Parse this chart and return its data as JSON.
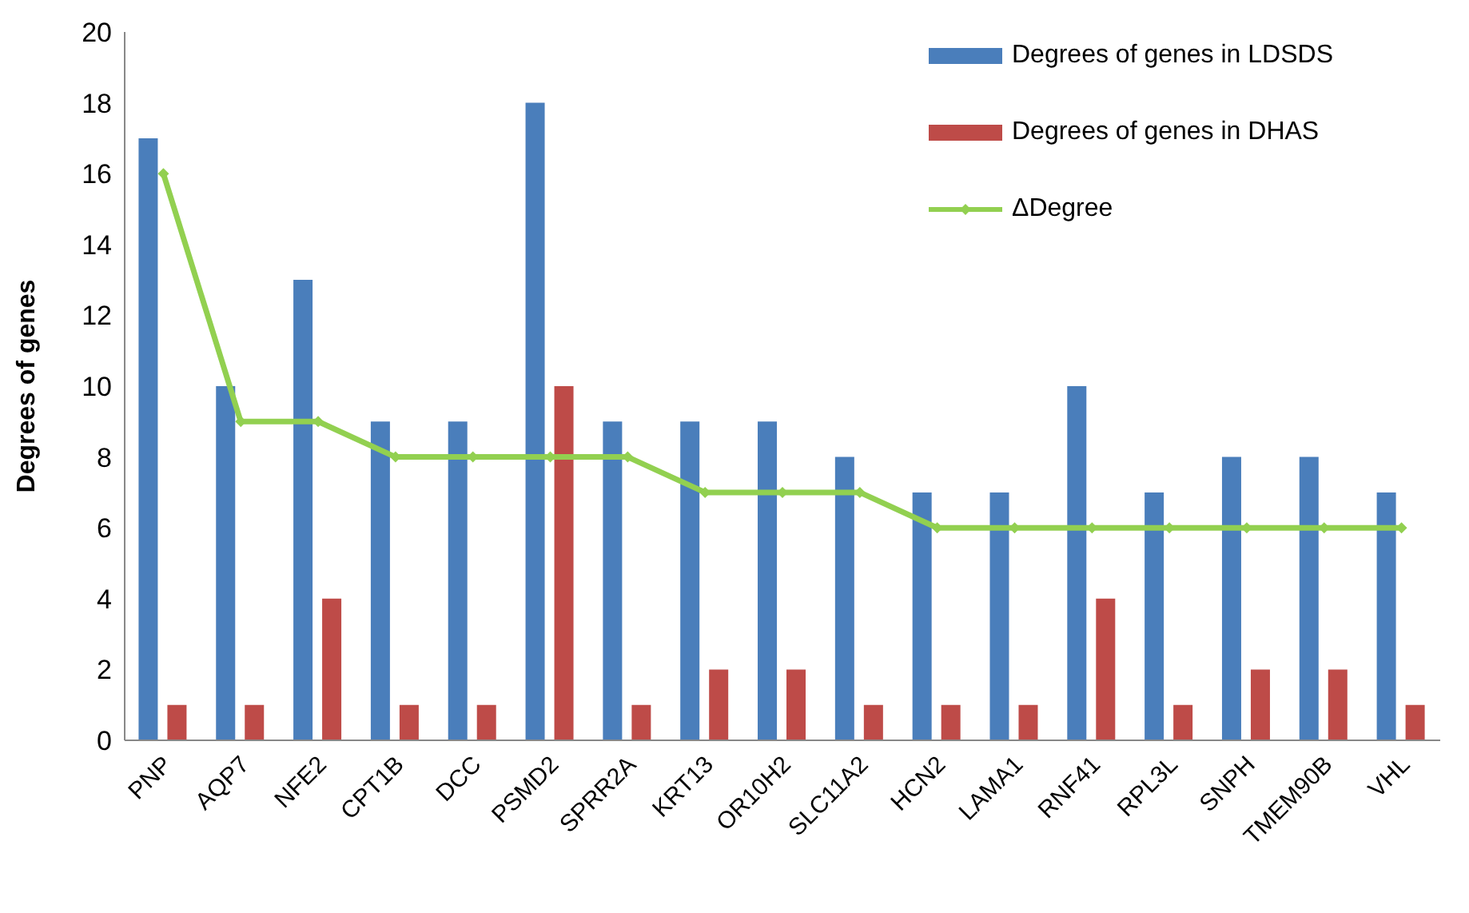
{
  "chart_data": {
    "type": "bar",
    "ylabel": "Degrees of genes",
    "categories": [
      "PNP",
      "AQP7",
      "NFE2",
      "CPT1B",
      "DCC",
      "PSMD2",
      "SPRR2A",
      "KRT13",
      "OR10H2",
      "SLC11A2",
      "HCN2",
      "LAMA1",
      "RNF41",
      "RPL3L",
      "SNPH",
      "TMEM90B",
      "VHL"
    ],
    "series": [
      {
        "name": "Degrees of genes in LDSDS",
        "color": "#4a7ebb",
        "values": [
          17,
          10,
          13,
          9,
          9,
          18,
          9,
          9,
          9,
          8,
          7,
          7,
          10,
          7,
          8,
          8,
          7
        ]
      },
      {
        "name": "Degrees of genes in DHAS",
        "color": "#be4b48",
        "values": [
          1,
          1,
          4,
          1,
          1,
          10,
          1,
          2,
          2,
          1,
          1,
          1,
          4,
          1,
          2,
          2,
          1
        ]
      },
      {
        "name": "ΔDegree",
        "type": "line",
        "color": "#92d050",
        "marker": "diamond",
        "values": [
          16,
          9,
          9,
          8,
          8,
          8,
          8,
          7,
          7,
          7,
          6,
          6,
          6,
          6,
          6,
          6,
          6
        ]
      }
    ],
    "ylim": [
      0,
      20
    ],
    "yticks": [
      0,
      2,
      4,
      6,
      8,
      10,
      12,
      14,
      16,
      18,
      20
    ],
    "legend": "top right"
  }
}
